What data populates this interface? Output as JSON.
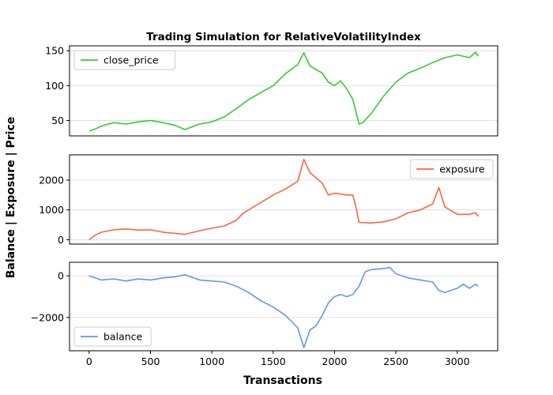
{
  "figure": {
    "title": "Trading Simulation for RelativeVolatilityIndex",
    "ylabel": "Balance | Exposure | Price",
    "xlabel": "Transactions"
  },
  "chart_data": [
    {
      "type": "line",
      "series": [
        {
          "name": "close_price",
          "color": "#32cd32",
          "x": [
            0,
            50,
            100,
            200,
            300,
            400,
            500,
            600,
            700,
            780,
            900,
            1000,
            1100,
            1200,
            1300,
            1400,
            1500,
            1600,
            1700,
            1750,
            1800,
            1900,
            1950,
            2000,
            2050,
            2100,
            2150,
            2200,
            2230,
            2300,
            2400,
            2500,
            2600,
            2700,
            2800,
            2900,
            3000,
            3100,
            3150,
            3170
          ],
          "y": [
            35,
            38,
            42,
            47,
            45,
            48,
            50,
            47,
            43,
            37,
            45,
            48,
            55,
            67,
            80,
            90,
            100,
            117,
            130,
            147,
            128,
            118,
            105,
            100,
            107,
            95,
            80,
            45,
            47,
            60,
            85,
            105,
            118,
            125,
            133,
            140,
            144,
            140,
            148,
            142
          ]
        }
      ],
      "legend": "top-left",
      "ylim": [
        28,
        157
      ],
      "yticks": [
        50,
        100,
        150
      ],
      "xlim": [
        -160,
        3330
      ],
      "grid": "y"
    },
    {
      "type": "line",
      "series": [
        {
          "name": "exposure",
          "color": "#ff6347",
          "x": [
            0,
            50,
            100,
            200,
            300,
            400,
            500,
            600,
            700,
            780,
            900,
            1000,
            1100,
            1200,
            1250,
            1300,
            1400,
            1500,
            1600,
            1700,
            1750,
            1800,
            1900,
            1950,
            2000,
            2100,
            2150,
            2180,
            2200,
            2300,
            2400,
            2500,
            2600,
            2700,
            2750,
            2800,
            2850,
            2900,
            3000,
            3100,
            3150,
            3170
          ],
          "y": [
            0,
            150,
            250,
            330,
            360,
            320,
            330,
            250,
            210,
            180,
            300,
            380,
            460,
            650,
            870,
            1000,
            1250,
            1500,
            1700,
            1960,
            2700,
            2250,
            1900,
            1500,
            1560,
            1500,
            1500,
            1000,
            580,
            560,
            600,
            700,
            900,
            1000,
            1100,
            1200,
            1750,
            1100,
            850,
            850,
            900,
            780
          ]
        }
      ],
      "legend": "top-right",
      "ylim": [
        -150,
        2850
      ],
      "yticks": [
        0,
        1000,
        2000
      ],
      "xlim": [
        -160,
        3330
      ],
      "grid": "y"
    },
    {
      "type": "line",
      "series": [
        {
          "name": "balance",
          "color": "#6495ed",
          "x": [
            0,
            50,
            100,
            200,
            300,
            400,
            500,
            600,
            700,
            780,
            900,
            1000,
            1100,
            1200,
            1300,
            1400,
            1500,
            1600,
            1700,
            1750,
            1800,
            1850,
            1900,
            1950,
            2000,
            2050,
            2100,
            2150,
            2200,
            2250,
            2300,
            2400,
            2450,
            2500,
            2600,
            2700,
            2800,
            2850,
            2900,
            3000,
            3050,
            3100,
            3150,
            3170
          ],
          "y": [
            0,
            -100,
            -200,
            -150,
            -250,
            -150,
            -200,
            -100,
            -50,
            50,
            -200,
            -250,
            -300,
            -500,
            -800,
            -1200,
            -1500,
            -1900,
            -2500,
            -3450,
            -2600,
            -2400,
            -1900,
            -1300,
            -1000,
            -900,
            -1000,
            -900,
            -500,
            200,
            300,
            350,
            400,
            100,
            -100,
            -200,
            -300,
            -700,
            -800,
            -600,
            -400,
            -600,
            -400,
            -500
          ]
        }
      ],
      "legend": "bottom-left",
      "ylim": [
        -3600,
        650
      ],
      "yticks": [
        0,
        -2000
      ],
      "ytick_labels": [
        "0",
        "−2000"
      ],
      "xlim": [
        -160,
        3330
      ],
      "xticks": [
        0,
        500,
        1000,
        1500,
        2000,
        2500,
        3000
      ],
      "grid": "y"
    }
  ]
}
